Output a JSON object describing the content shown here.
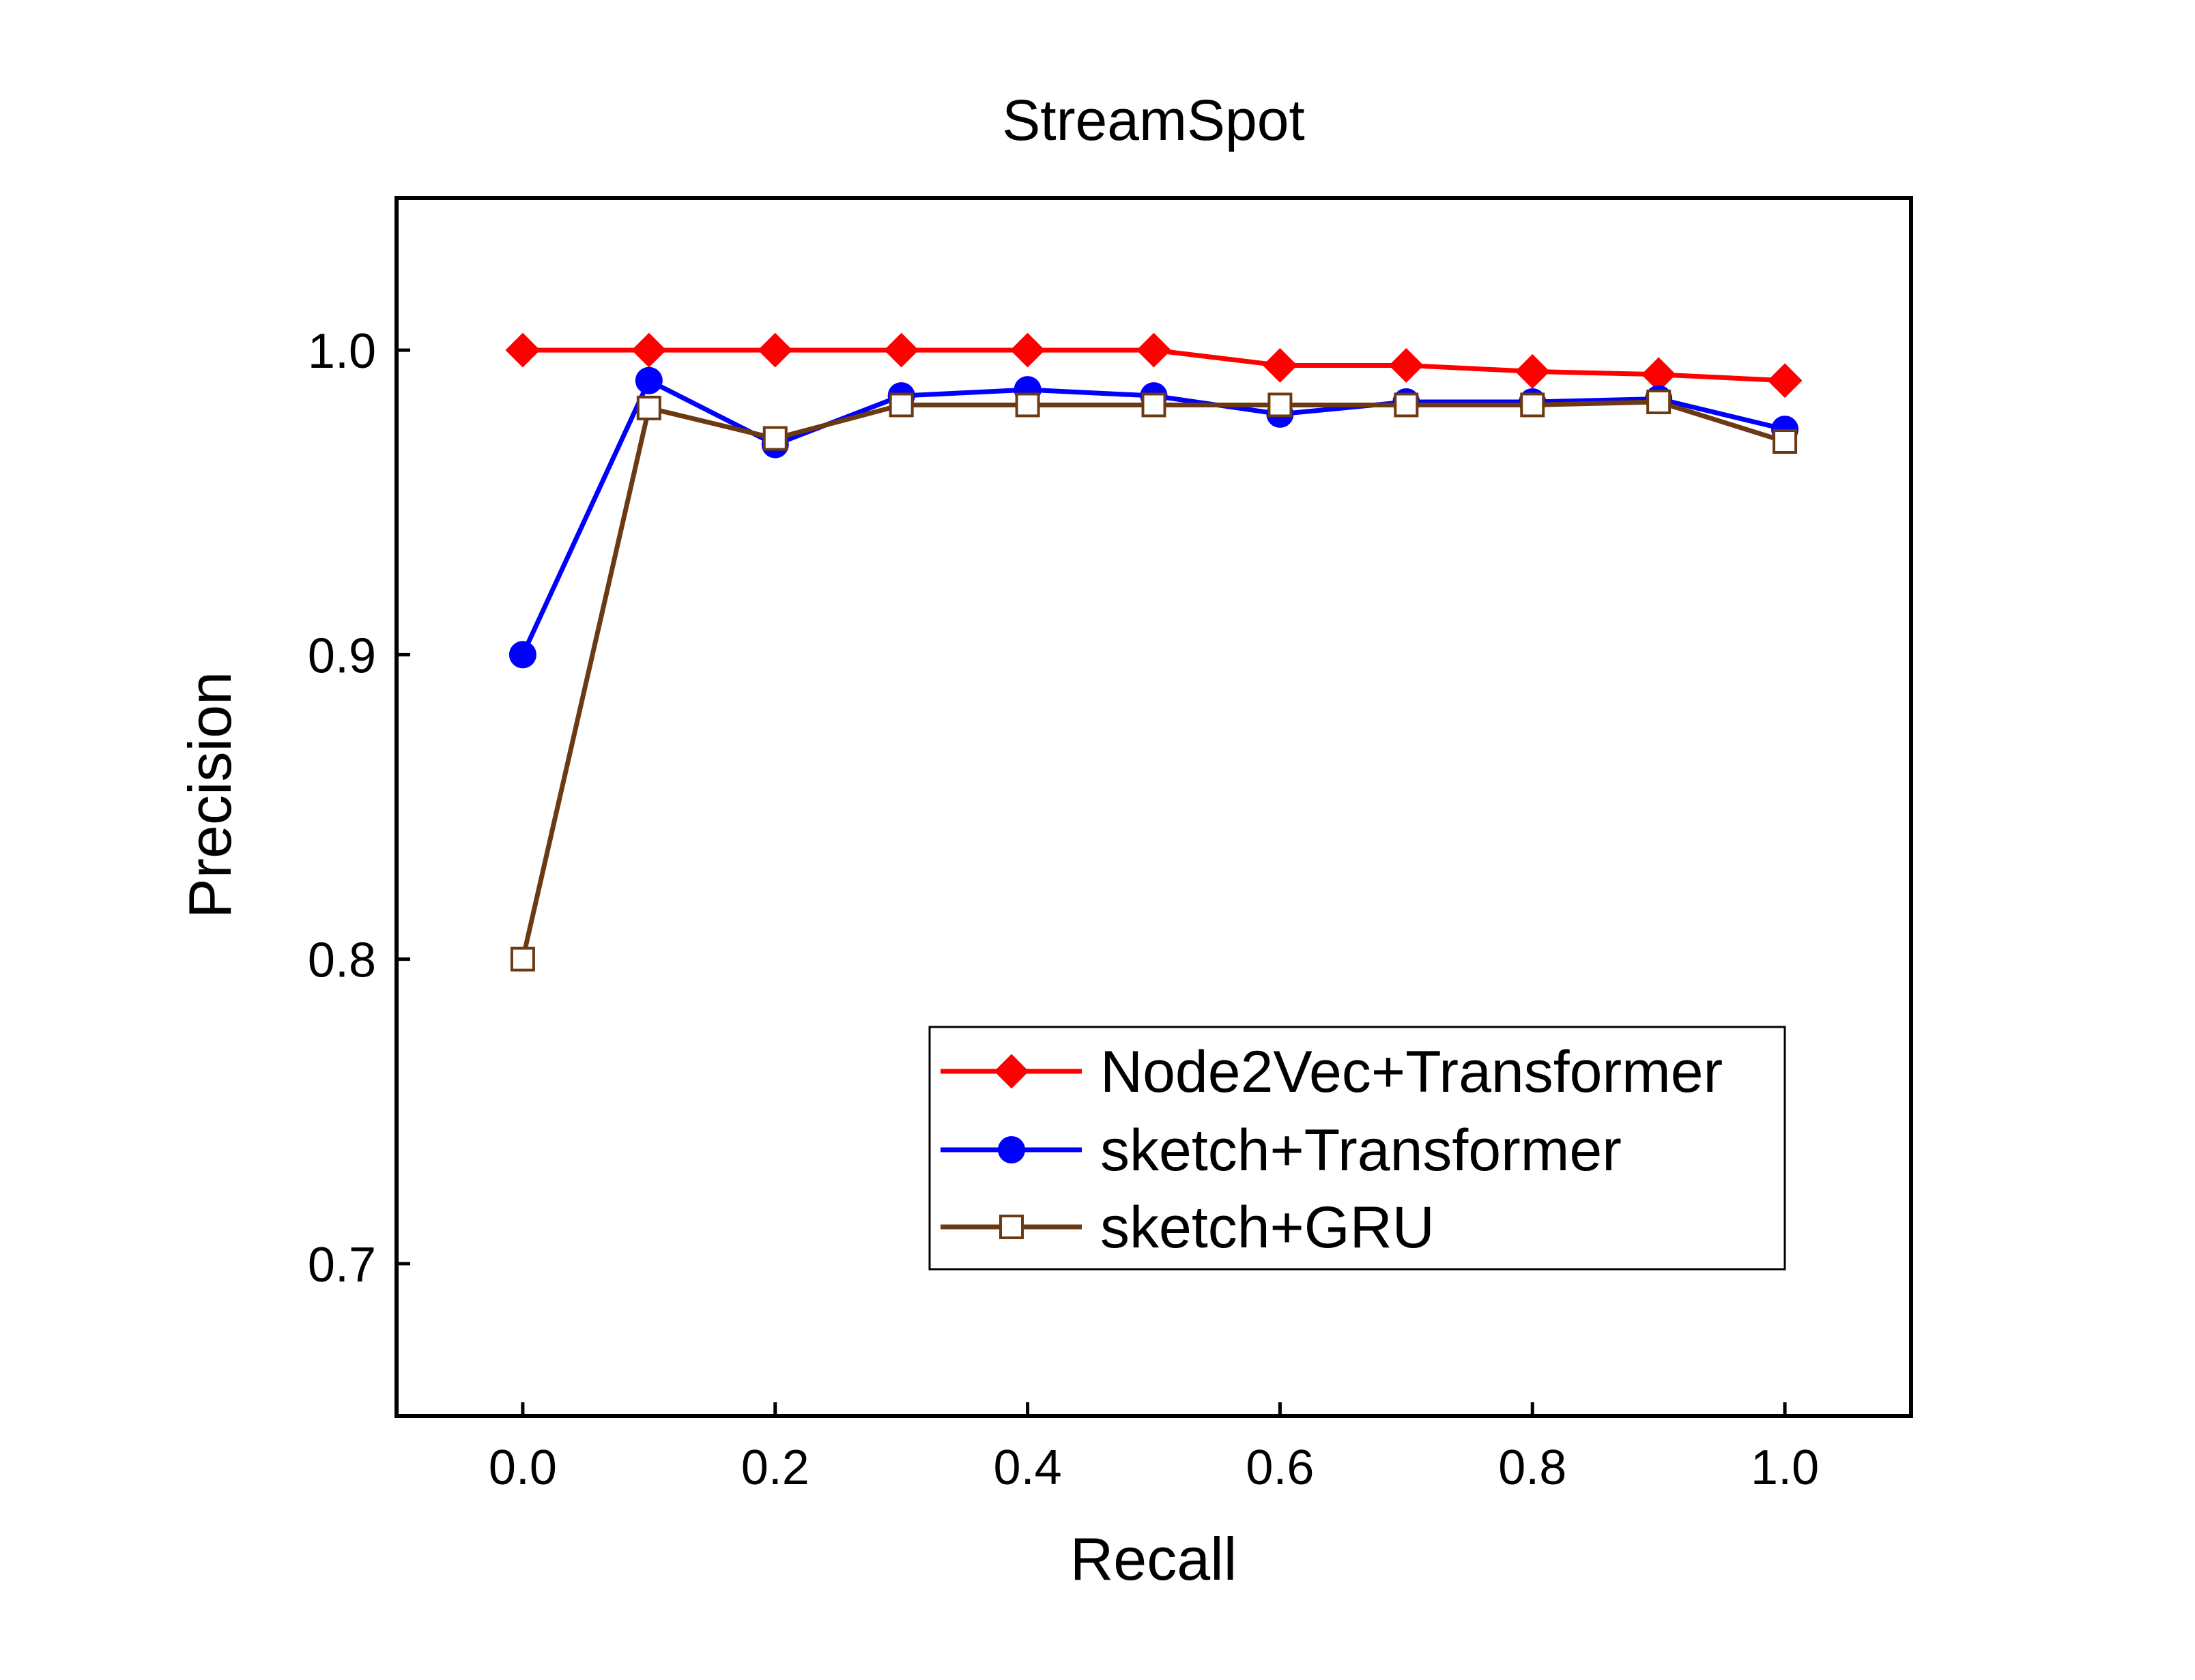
{
  "chart_data": {
    "type": "line",
    "title": "StreamSpot",
    "xlabel": "Recall",
    "ylabel": "Precision",
    "xlim": [
      -0.1,
      1.1
    ],
    "ylim": [
      0.65,
      1.05
    ],
    "xticks": [
      0.0,
      0.2,
      0.4,
      0.6,
      0.8,
      1.0
    ],
    "yticks": [
      0.7,
      0.8,
      0.9,
      1.0
    ],
    "xtick_labels": [
      "0.0",
      "0.2",
      "0.4",
      "0.6",
      "0.8",
      "1.0"
    ],
    "ytick_labels": [
      "0.7",
      "0.8",
      "0.9",
      "1.0"
    ],
    "grid": false,
    "legend_position": "bottom-right",
    "x": [
      0.0,
      0.1,
      0.2,
      0.3,
      0.4,
      0.5,
      0.6,
      0.7,
      0.8,
      0.9,
      1.0
    ],
    "series": [
      {
        "name": "Node2Vec+Transformer",
        "color": "#ff0000",
        "marker": "diamond-filled",
        "values": [
          1.0,
          1.0,
          1.0,
          1.0,
          1.0,
          1.0,
          0.995,
          0.995,
          0.993,
          0.992,
          0.99
        ]
      },
      {
        "name": "sketch+Transformer",
        "color": "#0000ff",
        "marker": "circle-filled",
        "values": [
          0.9,
          0.99,
          0.969,
          0.985,
          0.987,
          0.985,
          0.979,
          0.983,
          0.983,
          0.984,
          0.974
        ]
      },
      {
        "name": "sketch+GRU",
        "color": "#6b3a12",
        "marker": "square-open",
        "values": [
          0.8,
          0.981,
          0.971,
          0.982,
          0.982,
          0.982,
          0.982,
          0.982,
          0.982,
          0.983,
          0.97
        ]
      }
    ]
  }
}
